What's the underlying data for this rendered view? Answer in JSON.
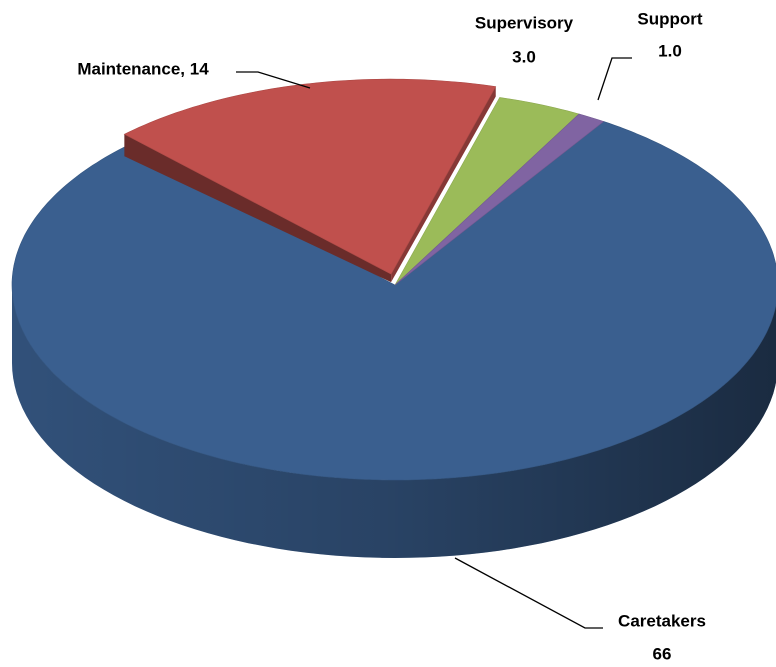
{
  "chart_data": {
    "type": "pie",
    "categories": [
      "Caretakers",
      "Maintenance",
      "Supervisory",
      "Support"
    ],
    "values": [
      66,
      14,
      3.0,
      1.0
    ],
    "value_labels": [
      "66",
      "Maintenance, 14",
      "3.0",
      "1.0"
    ],
    "colors": [
      "#3a5f8f",
      "#c0504d",
      "#9bbb59",
      "#8064a2"
    ]
  }
}
